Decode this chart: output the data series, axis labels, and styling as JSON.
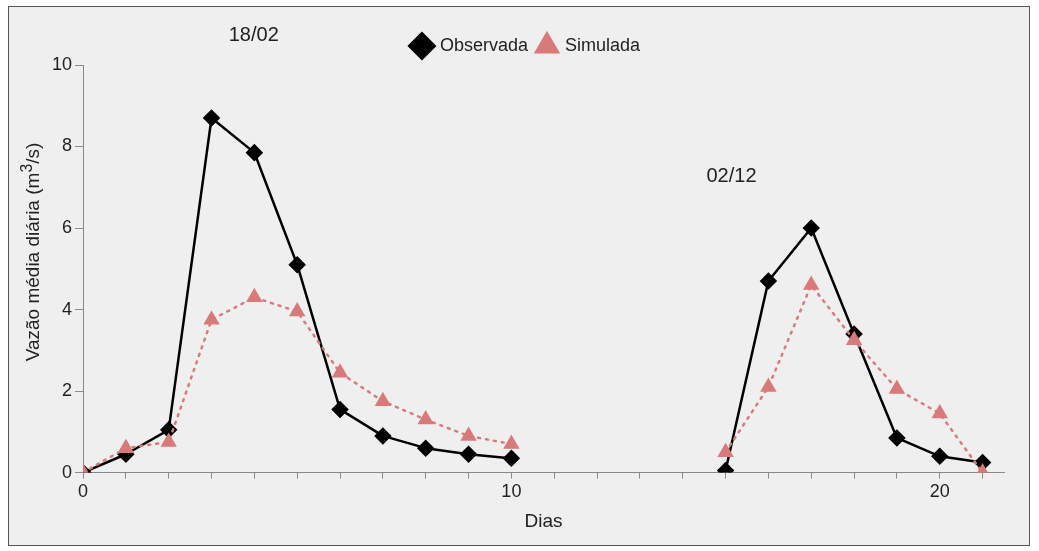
{
  "chart_data": {
    "type": "line",
    "xlabel": "Dias",
    "ylabel": "Vazão média diária (m$^{3}$/s)",
    "x": [
      0,
      1,
      2,
      3,
      4,
      5,
      6,
      7,
      8,
      9,
      10,
      11,
      12,
      13,
      14,
      15,
      16,
      17,
      18,
      19,
      20,
      21
    ],
    "series": [
      {
        "name": "Observada",
        "color": "#000000",
        "marker": "diamond",
        "line_style": "solid",
        "values": [
          0,
          0.45,
          1.05,
          8.7,
          7.85,
          5.1,
          1.55,
          0.9,
          0.6,
          0.45,
          0.35,
          null,
          null,
          null,
          null,
          0.05,
          4.7,
          6.0,
          3.4,
          0.85,
          0.4,
          0.25
        ]
      },
      {
        "name": "Simulada",
        "color": "#d97a7a",
        "marker": "triangle",
        "line_style": "dotted",
        "values": [
          0,
          0.6,
          0.75,
          3.75,
          4.3,
          3.95,
          2.45,
          1.75,
          1.3,
          0.9,
          0.7,
          null,
          null,
          null,
          null,
          0.5,
          2.1,
          4.6,
          3.25,
          2.05,
          1.45,
          0
        ]
      }
    ],
    "xlim": [
      0,
      21.5
    ],
    "xticks": [
      0,
      {
        "value": 1,
        "label": null
      },
      {
        "value": 2,
        "label": null
      },
      {
        "value": 3,
        "label": null
      },
      {
        "value": 4,
        "label": null
      },
      {
        "value": 5,
        "label": null
      },
      {
        "value": 6,
        "label": null
      },
      {
        "value": 7,
        "label": null
      },
      {
        "value": 8,
        "label": null
      },
      {
        "value": 9,
        "label": null
      },
      10,
      {
        "value": 11,
        "label": null
      },
      {
        "value": 12,
        "label": null
      },
      {
        "value": 13,
        "label": null
      },
      {
        "value": 14,
        "label": null
      },
      {
        "value": 15,
        "label": null
      },
      {
        "value": 16,
        "label": null
      },
      {
        "value": 17,
        "label": null
      },
      {
        "value": 18,
        "label": null
      },
      {
        "value": 19,
        "label": null
      },
      20,
      {
        "value": 21,
        "label": null
      }
    ],
    "ylim": [
      0,
      10
    ],
    "yticks": [
      0,
      2,
      4,
      6,
      8,
      10
    ],
    "grid": false,
    "legend": "top",
    "annotations": [
      "18/02",
      "02/12"
    ]
  }
}
